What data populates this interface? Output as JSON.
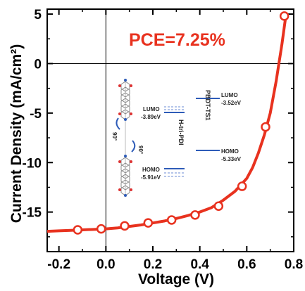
{
  "chart_data": {
    "type": "line",
    "title": "",
    "xlabel": "Voltage (V)",
    "ylabel": "Current Density (mA/cm²)",
    "xlim": [
      -0.25,
      0.8
    ],
    "ylim": [
      -19,
      5.5
    ],
    "x_ticks": [
      "-0.2",
      "0.0",
      "0.2",
      "0.4",
      "0.6",
      "0.8"
    ],
    "x_tick_values": [
      -0.2,
      0.0,
      0.2,
      0.4,
      0.6,
      0.8
    ],
    "y_ticks": [
      "5",
      "0",
      "-5",
      "-10",
      "-15"
    ],
    "y_tick_values": [
      5,
      0,
      -5,
      -10,
      -15
    ],
    "annotation": "PCE=7.25%",
    "series": [
      {
        "color": "#e8321f",
        "curve": {
          "x": [
            -0.25,
            -0.2,
            -0.15,
            -0.1,
            -0.05,
            0.0,
            0.05,
            0.1,
            0.15,
            0.2,
            0.25,
            0.3,
            0.35,
            0.4,
            0.45,
            0.5,
            0.55,
            0.6,
            0.625,
            0.65,
            0.675,
            0.7,
            0.725,
            0.75,
            0.765
          ],
          "y": [
            -16.95,
            -16.9,
            -16.85,
            -16.8,
            -16.75,
            -16.7,
            -16.6,
            -16.45,
            -16.3,
            -16.1,
            -15.9,
            -15.65,
            -15.35,
            -15.0,
            -14.55,
            -13.8,
            -12.9,
            -11.6,
            -10.5,
            -9.0,
            -7.2,
            -5.0,
            -1.8,
            2.0,
            4.6
          ]
        },
        "markers": {
          "x": [
            -0.12,
            -0.02,
            0.08,
            0.18,
            0.28,
            0.38,
            0.48,
            0.58,
            0.68,
            0.76
          ],
          "y": [
            -16.8,
            -16.7,
            -16.4,
            -16.1,
            -15.8,
            -15.3,
            -14.4,
            -12.4,
            -6.4,
            4.8
          ]
        }
      }
    ],
    "inset": {
      "labels": {
        "left_lumo": "LUMO",
        "left_lumo_val": "-3.89eV",
        "left_homo": "HOMO",
        "left_homo_val": "-5.91eV",
        "left_name": "H-tri-PDI",
        "right_lumo": "LUMO",
        "right_lumo_val": "-3.52eV",
        "right_homo": "HOMO",
        "right_homo_val": "-5.33eV",
        "right_name": "PBDT-TS1",
        "angle_top": "90°",
        "angle_bottom": "90°"
      },
      "colors": {
        "level": "#2e5cb8",
        "level_light": "#6b8bd6",
        "arrow": "#2e5cb8"
      }
    },
    "grid": false,
    "legend": "none"
  }
}
